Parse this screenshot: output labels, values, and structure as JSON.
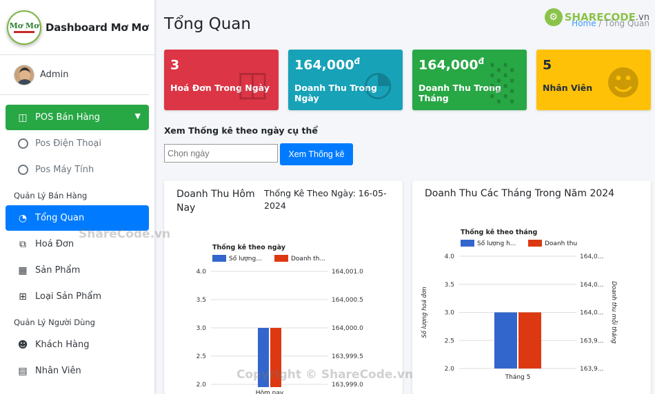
{
  "brand": {
    "title": "Dashboard Mơ Mơ",
    "logo_text": "Mơ Mơ"
  },
  "user": {
    "name": "Admin"
  },
  "sidebar": {
    "pos": {
      "label": "POS Bán Hàng",
      "icon": "pos-grid-icon"
    },
    "pos_sub": [
      {
        "label": "Pos Điện Thoại"
      },
      {
        "label": "Pos Máy Tính"
      }
    ],
    "section_sales": "Quản Lý Bán Hàng",
    "sales_items": [
      {
        "label": "Tổng Quan",
        "icon": "dashboard-icon",
        "active": true
      },
      {
        "label": "Hoá Đơn",
        "icon": "copy-icon"
      },
      {
        "label": "Sản Phẩm",
        "icon": "grid-icon"
      },
      {
        "label": "Loại Sản Phẩm",
        "icon": "table-icon"
      }
    ],
    "section_users": "Quản Lý Người Dùng",
    "user_items": [
      {
        "label": "Khách Hàng",
        "icon": "users-icon"
      },
      {
        "label": "Nhân Viên",
        "icon": "id-card-icon"
      }
    ]
  },
  "header": {
    "title": "Tổng Quan",
    "breadcrumb_home": "Home",
    "breadcrumb_current": "Tổng Quan",
    "sharecode": "SHARECODE",
    "sharecode_tld": ".vn"
  },
  "stats": [
    {
      "value": "3",
      "suffix": "",
      "label": "Hoá Đơn Trong Ngày",
      "color": "#dc3545",
      "icon": "bag-icon"
    },
    {
      "value": "164,000",
      "suffix": "đ",
      "label": "Doanh Thu Trong Ngày",
      "color": "#17a2b8",
      "icon": "pie-icon"
    },
    {
      "value": "164,000",
      "suffix": "đ",
      "label": "Doanh Thu Trong Tháng",
      "color": "#28a745",
      "icon": "bar-chart-icon"
    },
    {
      "value": "5",
      "suffix": "",
      "label": "Nhân Viên",
      "color": "#ffc107",
      "icon": "user-plus-icon"
    }
  ],
  "filter": {
    "title": "Xem Thống kê theo ngày cụ thể",
    "placeholder": "Chọn ngày",
    "button": "Xem Thống kê"
  },
  "card_today": {
    "title": "Doanh Thu Hôm Nay",
    "subtitle": "Thống Kê Theo Ngày: 16-05-2024"
  },
  "card_year": {
    "title": "Doanh Thu Các Tháng Trong Năm 2024"
  },
  "watermarks": {
    "a": "ShareCode.vn",
    "b": "Copyright © ShareCode.vn"
  },
  "chart_data": [
    {
      "type": "bar",
      "title": "Thống kê theo ngày",
      "categories": [
        "Hôm nay"
      ],
      "series": [
        {
          "name": "Số lượng...",
          "axis": "left",
          "values": [
            3
          ],
          "color": "#3366cc"
        },
        {
          "name": "Doanh th...",
          "axis": "right",
          "values": [
            164000
          ],
          "color": "#dc3912"
        }
      ],
      "left_ticks": [
        "4.0",
        "3.5",
        "3.0",
        "2.5",
        "2.0"
      ],
      "right_ticks": [
        "164,001.0",
        "164,000.5",
        "164,000.0",
        "163,999.5",
        "163,999.0"
      ],
      "ylim_left": [
        2,
        4
      ],
      "ylim_right": [
        163999,
        164001
      ],
      "legend": "top"
    },
    {
      "type": "bar",
      "title": "Thống kê theo tháng",
      "categories": [
        "Tháng 5"
      ],
      "series": [
        {
          "name": "Số lượng h...",
          "axis": "left",
          "values": [
            3
          ],
          "color": "#3366cc"
        },
        {
          "name": "Doanh thu",
          "axis": "right",
          "values": [
            164000
          ],
          "color": "#dc3912"
        }
      ],
      "left_ticks": [
        "4.0",
        "3.5",
        "3.0",
        "2.5",
        "2.0"
      ],
      "right_ticks": [
        "164,0...",
        "164,0...",
        "164,0...",
        "163,9...",
        "163,9..."
      ],
      "ylim_left": [
        2,
        4
      ],
      "ylim_right": [
        163999,
        164001
      ],
      "ylabel_left": "Số lượng hoá đơn",
      "ylabel_right": "Doanh thu mỗi tháng",
      "legend": "top"
    }
  ]
}
